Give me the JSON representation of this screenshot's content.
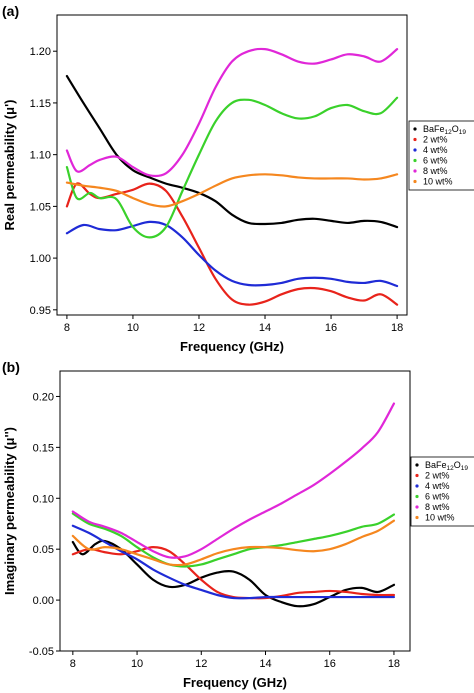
{
  "chart_data": [
    {
      "type": "line",
      "panel_label": "(a)",
      "xlabel": "Frequency (GHz)",
      "ylabel": "Real permeability (μ')",
      "xlim": [
        7.7,
        18.3
      ],
      "ylim": [
        0.945,
        1.235
      ],
      "xticks": [
        8,
        10,
        12,
        14,
        16,
        18
      ],
      "yticks": [
        0.95,
        1.0,
        1.05,
        1.1,
        1.15,
        1.2
      ],
      "ytick_labels": [
        "0.95",
        "1.00",
        "1.05",
        "1.10",
        "1.15",
        "1.20"
      ],
      "legend": {
        "position": "right"
      },
      "series": [
        {
          "name": "BaFe12O19",
          "name_main": "BaFe",
          "name_sub1": "12",
          "name_mid": "O",
          "name_sub2": "19",
          "color": "#000000",
          "x": [
            8,
            8.5,
            9,
            9.5,
            10,
            10.5,
            11,
            11.5,
            12,
            12.5,
            13,
            13.5,
            14,
            14.5,
            15,
            15.5,
            16,
            16.5,
            17,
            17.5,
            18
          ],
          "y": [
            1.176,
            1.15,
            1.125,
            1.1,
            1.085,
            1.078,
            1.072,
            1.068,
            1.063,
            1.055,
            1.042,
            1.034,
            1.033,
            1.034,
            1.037,
            1.038,
            1.036,
            1.034,
            1.036,
            1.035,
            1.03
          ]
        },
        {
          "name": "2 wt%",
          "color": "#e8231b",
          "x": [
            8,
            8.3,
            8.7,
            9,
            9.5,
            10,
            10.5,
            11,
            11.5,
            12,
            12.5,
            13,
            13.5,
            14,
            14.5,
            15,
            15.5,
            16,
            16.5,
            17,
            17.5,
            18
          ],
          "y": [
            1.05,
            1.072,
            1.062,
            1.058,
            1.062,
            1.066,
            1.072,
            1.065,
            1.04,
            1.01,
            0.98,
            0.96,
            0.955,
            0.958,
            0.965,
            0.97,
            0.971,
            0.968,
            0.962,
            0.959,
            0.965,
            0.955
          ]
        },
        {
          "name": "4 wt%",
          "color": "#1f2bd6",
          "x": [
            8,
            8.5,
            9,
            9.5,
            10,
            10.5,
            11,
            11.5,
            12,
            12.5,
            13,
            13.5,
            14,
            14.5,
            15,
            15.5,
            16,
            16.5,
            17,
            17.5,
            18
          ],
          "y": [
            1.024,
            1.032,
            1.028,
            1.027,
            1.031,
            1.035,
            1.032,
            1.02,
            1.003,
            0.988,
            0.978,
            0.974,
            0.974,
            0.976,
            0.98,
            0.981,
            0.98,
            0.977,
            0.976,
            0.978,
            0.973
          ]
        },
        {
          "name": "6 wt%",
          "color": "#3ad12b",
          "x": [
            8,
            8.3,
            8.7,
            9,
            9.5,
            10,
            10.5,
            11,
            11.5,
            12,
            12.5,
            13,
            13.5,
            14,
            14.5,
            15,
            15.5,
            16,
            16.5,
            17,
            17.5,
            18
          ],
          "y": [
            1.088,
            1.058,
            1.063,
            1.058,
            1.057,
            1.03,
            1.02,
            1.03,
            1.065,
            1.1,
            1.132,
            1.15,
            1.153,
            1.148,
            1.14,
            1.135,
            1.137,
            1.145,
            1.148,
            1.142,
            1.14,
            1.155
          ]
        },
        {
          "name": "8 wt%",
          "color": "#e027d8",
          "x": [
            8,
            8.3,
            8.7,
            9,
            9.5,
            10,
            10.5,
            11,
            11.5,
            12,
            12.5,
            13,
            13.5,
            14,
            14.5,
            15,
            15.5,
            16,
            16.5,
            17,
            17.5,
            18
          ],
          "y": [
            1.104,
            1.084,
            1.09,
            1.095,
            1.098,
            1.088,
            1.08,
            1.082,
            1.1,
            1.13,
            1.165,
            1.19,
            1.2,
            1.202,
            1.197,
            1.19,
            1.188,
            1.192,
            1.197,
            1.195,
            1.19,
            1.202
          ]
        },
        {
          "name": "10 wt%",
          "color": "#f5871f",
          "x": [
            8,
            8.5,
            9,
            9.5,
            10,
            10.5,
            11,
            11.5,
            12,
            12.5,
            13,
            13.5,
            14,
            14.5,
            15,
            15.5,
            16,
            16.5,
            17,
            17.5,
            18
          ],
          "y": [
            1.073,
            1.07,
            1.068,
            1.065,
            1.058,
            1.052,
            1.05,
            1.055,
            1.062,
            1.07,
            1.077,
            1.08,
            1.081,
            1.08,
            1.078,
            1.077,
            1.077,
            1.077,
            1.076,
            1.077,
            1.081
          ]
        }
      ]
    },
    {
      "type": "line",
      "panel_label": "(b)",
      "xlabel": "Frequency (GHz)",
      "ylabel": "Imaginary permeability (μ'')",
      "xlim": [
        7.6,
        18.5
      ],
      "ylim": [
        -0.05,
        0.225
      ],
      "xticks": [
        8,
        10,
        12,
        14,
        16,
        18
      ],
      "yticks": [
        -0.05,
        0.0,
        0.05,
        0.1,
        0.15,
        0.2
      ],
      "ytick_labels": [
        "-0.05",
        "0.00",
        "0.05",
        "0.10",
        "0.15",
        "0.20"
      ],
      "legend": {
        "position": "right"
      },
      "series": [
        {
          "name": "BaFe12O19",
          "name_main": "BaFe",
          "name_sub1": "12",
          "name_mid": "O",
          "name_sub2": "19",
          "color": "#000000",
          "x": [
            8,
            8.3,
            8.7,
            9,
            9.5,
            10,
            10.5,
            11,
            11.5,
            12,
            12.5,
            13,
            13.5,
            14,
            14.5,
            15,
            15.5,
            16,
            16.5,
            17,
            17.5,
            18
          ],
          "y": [
            0.057,
            0.045,
            0.055,
            0.058,
            0.05,
            0.035,
            0.02,
            0.013,
            0.015,
            0.022,
            0.027,
            0.028,
            0.02,
            0.005,
            -0.002,
            -0.006,
            -0.004,
            0.003,
            0.01,
            0.012,
            0.008,
            0.015
          ]
        },
        {
          "name": "2 wt%",
          "color": "#e8231b",
          "x": [
            8,
            8.5,
            9,
            9.5,
            10,
            10.5,
            11,
            11.5,
            12,
            12.5,
            13,
            13.5,
            14,
            14.5,
            15,
            15.5,
            16,
            16.5,
            17,
            17.5,
            18
          ],
          "y": [
            0.045,
            0.05,
            0.047,
            0.045,
            0.048,
            0.052,
            0.048,
            0.035,
            0.02,
            0.008,
            0.003,
            0.002,
            0.002,
            0.004,
            0.007,
            0.008,
            0.009,
            0.008,
            0.006,
            0.005,
            0.005
          ]
        },
        {
          "name": "4 wt%",
          "color": "#1f2bd6",
          "x": [
            8,
            8.5,
            9,
            9.5,
            10,
            10.5,
            11,
            11.5,
            12,
            12.5,
            13,
            13.5,
            14,
            14.5,
            15,
            15.5,
            16,
            16.5,
            17,
            17.5,
            18
          ],
          "y": [
            0.073,
            0.066,
            0.057,
            0.048,
            0.04,
            0.03,
            0.022,
            0.015,
            0.01,
            0.005,
            0.002,
            0.002,
            0.003,
            0.003,
            0.003,
            0.003,
            0.003,
            0.003,
            0.003,
            0.003,
            0.003
          ]
        },
        {
          "name": "6 wt%",
          "color": "#3ad12b",
          "x": [
            8,
            8.5,
            9,
            9.5,
            10,
            10.5,
            11,
            11.5,
            12,
            12.5,
            13,
            13.5,
            14,
            14.5,
            15,
            15.5,
            16,
            16.5,
            17,
            17.5,
            18
          ],
          "y": [
            0.085,
            0.075,
            0.07,
            0.063,
            0.052,
            0.042,
            0.035,
            0.033,
            0.035,
            0.04,
            0.045,
            0.05,
            0.052,
            0.054,
            0.057,
            0.06,
            0.063,
            0.067,
            0.072,
            0.075,
            0.084
          ]
        },
        {
          "name": "8 wt%",
          "color": "#e027d8",
          "x": [
            8,
            8.5,
            9,
            9.5,
            10,
            10.5,
            11,
            11.5,
            12,
            12.5,
            13,
            13.5,
            14,
            14.5,
            15,
            15.5,
            16,
            16.5,
            17,
            17.5,
            18
          ],
          "y": [
            0.087,
            0.077,
            0.072,
            0.066,
            0.057,
            0.048,
            0.042,
            0.043,
            0.05,
            0.06,
            0.07,
            0.079,
            0.087,
            0.095,
            0.104,
            0.113,
            0.124,
            0.136,
            0.149,
            0.165,
            0.193
          ]
        },
        {
          "name": "10 wt%",
          "color": "#f5871f",
          "x": [
            8,
            8.5,
            9,
            9.5,
            10,
            10.5,
            11,
            11.5,
            12,
            12.5,
            13,
            13.5,
            14,
            14.5,
            15,
            15.5,
            16,
            16.5,
            17,
            17.5,
            18
          ],
          "y": [
            0.063,
            0.05,
            0.052,
            0.05,
            0.045,
            0.04,
            0.035,
            0.035,
            0.04,
            0.046,
            0.05,
            0.052,
            0.052,
            0.051,
            0.049,
            0.048,
            0.05,
            0.055,
            0.062,
            0.068,
            0.078
          ]
        }
      ]
    }
  ]
}
